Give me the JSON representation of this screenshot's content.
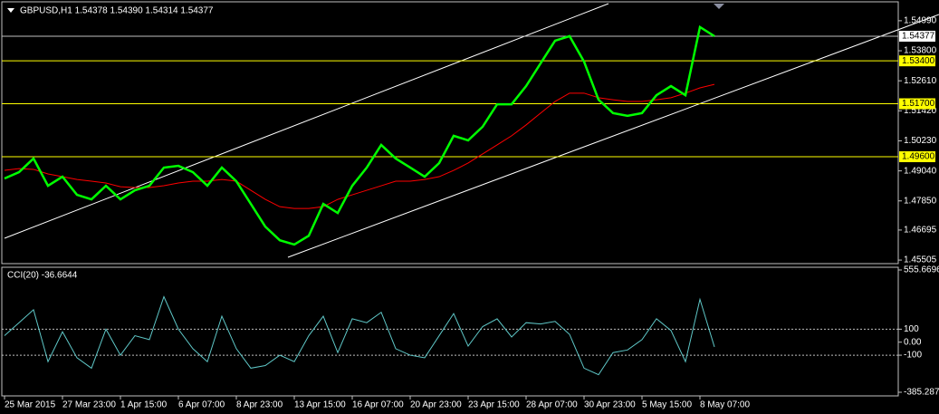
{
  "chart_data": [
    {
      "type": "line",
      "title": "GBPUSD,H1  1.54378 1.54390 1.54314 1.54377",
      "categories": [
        "25 Mar 2015",
        null,
        null,
        null,
        "27 Mar 23:00",
        null,
        null,
        null,
        "1 Apr 15:00",
        null,
        null,
        null,
        "6 Apr 07:00",
        null,
        null,
        null,
        "8 Apr 23:00",
        null,
        null,
        null,
        "13 Apr 15:00",
        null,
        null,
        null,
        "16 Apr 07:00",
        null,
        null,
        null,
        "20 Apr 23:00",
        null,
        null,
        null,
        "23 Apr 15:00",
        null,
        null,
        null,
        "28 Apr 07:00",
        null,
        null,
        null,
        "30 Apr 23:00",
        null,
        null,
        null,
        "5 May 15:00",
        null,
        null,
        null,
        "8 May 07:00",
        null
      ],
      "series": [
        {
          "color": "#00ff00",
          "values": [
            1.4874,
            1.4899,
            1.4953,
            1.4845,
            1.4881,
            1.4809,
            1.4791,
            1.4845,
            1.4791,
            1.4827,
            1.4845,
            1.4917,
            1.4924,
            1.4899,
            1.4845,
            1.4917,
            1.4863,
            1.4773,
            1.4683,
            1.4629,
            1.4612,
            1.4647,
            1.4773,
            1.4737,
            1.4845,
            1.4917,
            1.5007,
            1.4953,
            1.4917,
            1.4881,
            1.4935,
            1.5043,
            1.5025,
            1.5079,
            1.5168,
            1.5168,
            1.524,
            1.533,
            1.542,
            1.5438,
            1.5337,
            1.5186,
            1.5133,
            1.5122,
            1.5133,
            1.5204,
            1.524,
            1.5204,
            1.5474,
            1.5438
          ]
        },
        {
          "color": "#ff0000",
          "values": [
            1.4906,
            1.4913,
            1.491,
            1.4892,
            1.4881,
            1.487,
            1.4863,
            1.4856,
            1.4841,
            1.4838,
            1.4838,
            1.4845,
            1.4856,
            1.4863,
            1.4863,
            1.487,
            1.4863,
            1.4827,
            1.4791,
            1.4762,
            1.4755,
            1.4755,
            1.4762,
            1.4791,
            1.4809,
            1.4827,
            1.4845,
            1.4863,
            1.4863,
            1.487,
            1.4881,
            1.4906,
            1.4935,
            1.4971,
            1.5007,
            1.5043,
            1.5086,
            1.5133,
            1.5179,
            1.5212,
            1.5212,
            1.5194,
            1.5186,
            1.5179,
            1.5179,
            1.5186,
            1.5194,
            1.5212,
            1.5233,
            1.5247
          ]
        }
      ],
      "ylim": [
        1.454,
        1.5574
      ],
      "yticks": [
        {
          "value": 1.5499,
          "label": "1.54990"
        },
        {
          "value": 1.538,
          "label": "1.53800"
        },
        {
          "value": 1.5261,
          "label": "1.52610"
        },
        {
          "value": 1.5142,
          "label": "1.51420"
        },
        {
          "value": 1.5023,
          "label": "1.50230"
        },
        {
          "value": 1.4904,
          "label": "1.49040"
        },
        {
          "value": 1.4785,
          "label": "1.47850"
        },
        1.46695,
        1.45505
      ],
      "levels": [
        {
          "value": 1.534,
          "label": "1.53400"
        },
        {
          "value": 1.517,
          "label": "1.51700"
        },
        {
          "value": 1.496,
          "label": "1.49600"
        }
      ],
      "level_color": "#ffff00",
      "current_price": {
        "value": 1.54377,
        "label": "1.54377"
      }
    },
    {
      "type": "line",
      "title": "CCI(20) -36.6644",
      "series": [
        {
          "color": "#5fc8c8",
          "values": [
            50,
            150,
            250,
            -150,
            80,
            -120,
            -200,
            100,
            -100,
            50,
            20,
            350,
            100,
            -50,
            -150,
            200,
            -50,
            -200,
            -180,
            -100,
            -150,
            50,
            200,
            -80,
            180,
            150,
            230,
            -50,
            -100,
            -120,
            50,
            220,
            -30,
            120,
            180,
            40,
            150,
            140,
            160,
            60,
            -200,
            -250,
            -80,
            -60,
            20,
            180,
            90,
            -150,
            330,
            -36.6644
          ]
        }
      ],
      "ylim": [
        -385.2873,
        555.6696
      ],
      "yticks": [
        555.6696,
        100,
        {
          "value": 0,
          "label": "0.00"
        },
        -100,
        -385.2873
      ],
      "levels": [
        100,
        -100
      ]
    }
  ]
}
